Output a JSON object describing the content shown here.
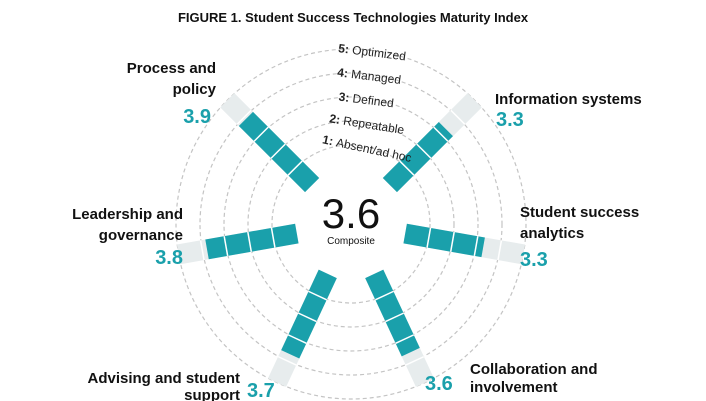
{
  "chart_data": {
    "type": "radial-bar",
    "title": "FIGURE 1. Student Success Technologies Maturity Index",
    "composite": {
      "value": "3.6",
      "label": "Composite"
    },
    "scale_max": 5,
    "levels": [
      {
        "num": "1:",
        "label": "Absent/ad hoc"
      },
      {
        "num": "2:",
        "label": "Repeatable"
      },
      {
        "num": "3:",
        "label": "Defined"
      },
      {
        "num": "4:",
        "label": "Managed"
      },
      {
        "num": "5:",
        "label": "Optimized"
      }
    ],
    "categories": [
      {
        "name_lines": [
          "Information systems"
        ],
        "value": 3.3,
        "display": "3.3"
      },
      {
        "name_lines": [
          "Student success",
          "analytics"
        ],
        "value": 3.3,
        "display": "3.3"
      },
      {
        "name_lines": [
          "Collaboration and",
          "involvement"
        ],
        "value": 3.6,
        "display": "3.6"
      },
      {
        "name_lines": [
          "Advising and student",
          "support"
        ],
        "value": 3.7,
        "display": "3.7"
      },
      {
        "name_lines": [
          "Leadership and",
          "governance"
        ],
        "value": 3.8,
        "display": "3.8"
      },
      {
        "name_lines": [
          "Process and",
          "policy"
        ],
        "value": 3.9,
        "display": "3.9"
      }
    ],
    "colors": {
      "filled": "#1aa0ab",
      "empty": "#e7eced",
      "ring": "#c4c4c4",
      "score": "#1aa0ab"
    }
  }
}
